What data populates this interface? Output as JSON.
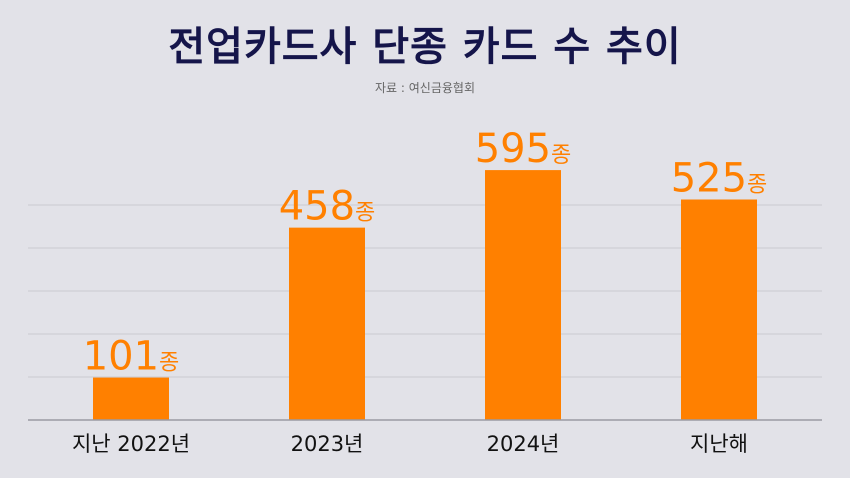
{
  "title": "전업카드사 단종 카드 수 추이",
  "source": "자료 : 여신금융협회",
  "chart_data": {
    "type": "bar",
    "title": "전업카드사 단종 카드 수 추이",
    "categories": [
      "지난 2022년",
      "2023년",
      "2024년",
      "지난해"
    ],
    "values": [
      101,
      458,
      595,
      525
    ],
    "value_unit": "종",
    "ylim": [
      0,
      660
    ],
    "grid": true,
    "bar_color": "#ff8000"
  }
}
